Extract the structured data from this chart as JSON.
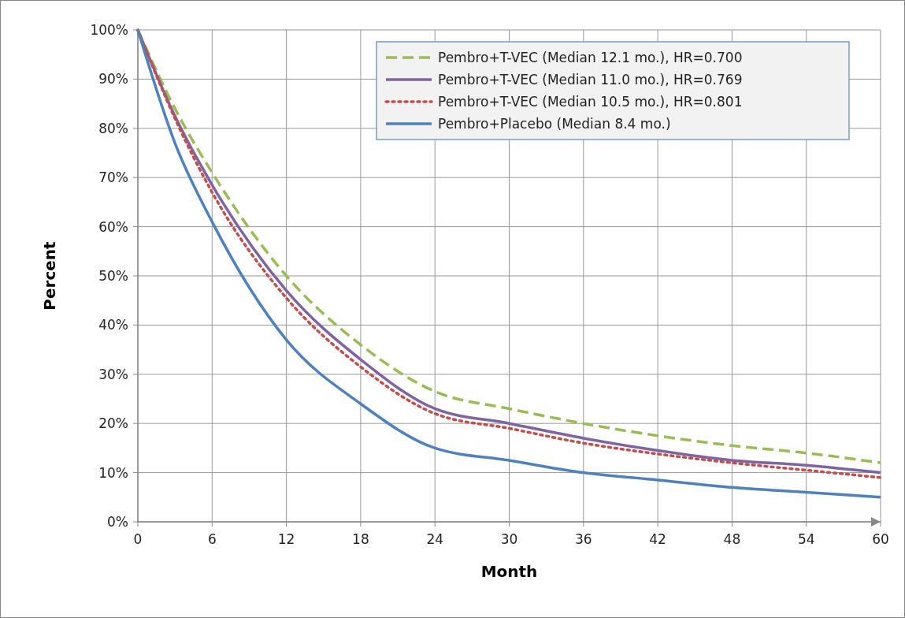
{
  "chart_data": {
    "type": "line",
    "xlabel": "Month",
    "ylabel": "Percent",
    "x": [
      0,
      3,
      6,
      12,
      18,
      24,
      30,
      36,
      42,
      48,
      54,
      60
    ],
    "series": [
      {
        "name": "Pembro+T-VEC (Median 12.1 mo.), HR=0.700",
        "color": "#9bbb59",
        "line_style": "dashed",
        "values": [
          100,
          84,
          71,
          50,
          36,
          26.5,
          23,
          20,
          17.5,
          15.5,
          14,
          12
        ]
      },
      {
        "name": "Pembro+T-VEC (Median 11.0 mo.), HR=0.769",
        "color": "#8064a2",
        "line_style": "solid",
        "values": [
          100,
          82.5,
          68.5,
          47,
          33,
          23,
          20,
          17,
          14.5,
          12.5,
          11.5,
          10
        ]
      },
      {
        "name": "Pembro+T-VEC (Median 10.5 mo.), HR=0.801",
        "color": "#c0504d",
        "line_style": "dotted",
        "values": [
          100,
          82,
          67,
          45.5,
          31.5,
          22,
          19,
          16,
          13.8,
          12,
          10.5,
          9
        ]
      },
      {
        "name": "Pembro+Placebo (Median 8.4 mo.)",
        "color": "#4f81bd",
        "line_style": "solid",
        "values": [
          100,
          77,
          61,
          37,
          24,
          15,
          12.5,
          10,
          8.5,
          7,
          6,
          5
        ]
      }
    ],
    "xlim": [
      0,
      60
    ],
    "xticks": [
      0,
      6,
      12,
      18,
      24,
      30,
      36,
      42,
      48,
      54,
      60
    ],
    "ylim": [
      0,
      100
    ],
    "yticks": [
      {
        "value": 0,
        "label": "0%"
      },
      {
        "value": 10,
        "label": "10%"
      },
      {
        "value": 20,
        "label": "20%"
      },
      {
        "value": 30,
        "label": "30%"
      },
      {
        "value": 40,
        "label": "40%"
      },
      {
        "value": 50,
        "label": "50%"
      },
      {
        "value": 60,
        "label": "60%"
      },
      {
        "value": 70,
        "label": "70%"
      },
      {
        "value": 80,
        "label": "80%"
      },
      {
        "value": 90,
        "label": "90%"
      },
      {
        "value": 100,
        "label": "100%"
      }
    ],
    "grid": true,
    "legend": "top right"
  }
}
